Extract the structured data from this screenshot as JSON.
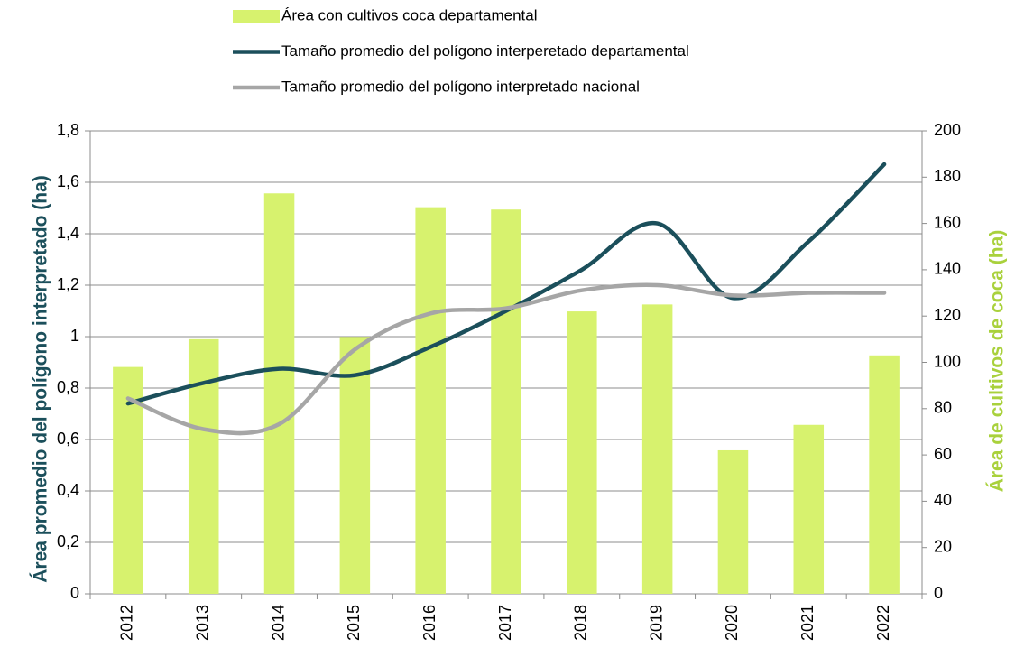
{
  "chart_data": {
    "type": "bar_line",
    "categories": [
      "2012",
      "2013",
      "2014",
      "2015",
      "2016",
      "2017",
      "2018",
      "2019",
      "2020",
      "2021",
      "2022"
    ],
    "series": [
      {
        "name": "Área con cultivos coca departamental",
        "type": "bar",
        "axis": "y2",
        "color": "#d7f26e",
        "values": [
          98,
          110,
          173,
          111,
          167,
          166,
          122,
          125,
          62,
          73,
          103
        ]
      },
      {
        "name": "Tamaño promedio del polígono interperetado departamental",
        "type": "line",
        "axis": "y",
        "color": "#1b4f5b",
        "values": [
          0.74,
          0.82,
          0.875,
          0.85,
          0.96,
          1.1,
          1.26,
          1.44,
          1.15,
          1.37,
          1.67
        ]
      },
      {
        "name": "Tamaño promedio del polígono interpretado nacional",
        "type": "line",
        "axis": "y",
        "color": "#a6a6a6",
        "values": [
          0.76,
          0.64,
          0.66,
          0.95,
          1.09,
          1.11,
          1.18,
          1.2,
          1.16,
          1.17,
          1.17
        ]
      }
    ],
    "ylabel": "Área promedio del polígono interpretado (ha)",
    "y2label": "Área de cultivos de coca (ha)",
    "ylim": [
      0,
      1.8
    ],
    "yticks": [
      0,
      {
        "value": 0.2,
        "label": "0,2"
      },
      {
        "value": 0.4,
        "label": "0,4"
      },
      {
        "value": 0.6,
        "label": "0,6"
      },
      {
        "value": 0.8,
        "label": "0,8"
      },
      1,
      {
        "value": 1.2,
        "label": "1,2"
      },
      {
        "value": 1.4,
        "label": "1,4"
      },
      {
        "value": 1.6,
        "label": "1,6"
      },
      {
        "value": 1.8,
        "label": "1,8"
      }
    ],
    "y2lim": [
      0,
      200
    ],
    "y2ticks": [
      0,
      20,
      40,
      60,
      80,
      100,
      120,
      140,
      160,
      180,
      200
    ],
    "grid": true
  }
}
